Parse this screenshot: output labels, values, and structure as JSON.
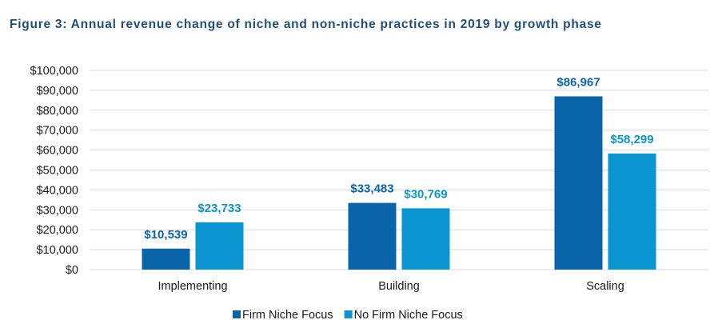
{
  "chart_data": {
    "type": "bar",
    "title": "Figure 3: Annual revenue change of niche and non-niche practices in 2019 by growth phase",
    "categories": [
      "Implementing",
      "Building",
      "Scaling"
    ],
    "series": [
      {
        "name": "Firm Niche Focus",
        "color": "#0a64aa",
        "values": [
          10539,
          33483,
          86967
        ],
        "labels": [
          "$10,539",
          "$33,483",
          "$86,967"
        ]
      },
      {
        "name": "No Firm Niche Focus",
        "color": "#0a95d0",
        "values": [
          23733,
          30769,
          58299
        ],
        "labels": [
          "$23,733",
          "$30,769",
          "$58,299"
        ]
      }
    ],
    "ylim": [
      0,
      100000
    ],
    "yticks": [
      0,
      10000,
      20000,
      30000,
      40000,
      50000,
      60000,
      70000,
      80000,
      90000,
      100000
    ],
    "ytick_labels": [
      "$0",
      "$10,000",
      "$20,000",
      "$30,000",
      "$40,000",
      "$50,000",
      "$60,000",
      "$70,000",
      "$80,000",
      "$90,000",
      "$100,000"
    ],
    "xlabel": "",
    "ylabel": "",
    "grid": true,
    "legend_position": "bottom",
    "title_color": "#1f4e79",
    "grid_color": "#d9d9d9"
  }
}
